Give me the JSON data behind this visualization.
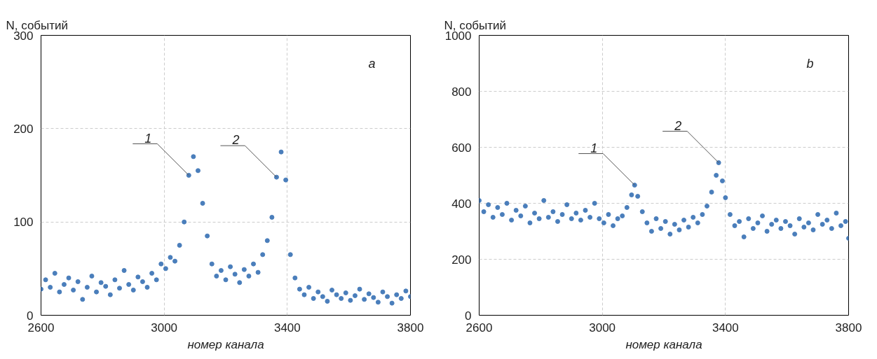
{
  "chart_data": [
    {
      "type": "scatter",
      "ylabel": "N, событий",
      "xlabel": "номер канала",
      "xlim": [
        2600,
        3800
      ],
      "ylim": [
        0,
        300
      ],
      "xticks": [
        2600,
        3000,
        3400,
        3800
      ],
      "yticks": [
        0,
        100,
        200,
        300
      ],
      "grid": true,
      "marker": "circle",
      "color": "#4a7ebb",
      "x": [
        2600,
        2615,
        2630,
        2645,
        2660,
        2675,
        2690,
        2705,
        2720,
        2735,
        2750,
        2765,
        2780,
        2795,
        2810,
        2825,
        2840,
        2855,
        2870,
        2885,
        2900,
        2915,
        2930,
        2945,
        2960,
        2975,
        2990,
        3005,
        3020,
        3035,
        3050,
        3065,
        3080,
        3095,
        3110,
        3125,
        3140,
        3155,
        3170,
        3185,
        3200,
        3215,
        3230,
        3245,
        3260,
        3275,
        3290,
        3305,
        3320,
        3335,
        3350,
        3365,
        3380,
        3395,
        3410,
        3425,
        3440,
        3455,
        3470,
        3485,
        3500,
        3515,
        3530,
        3545,
        3560,
        3575,
        3590,
        3605,
        3620,
        3635,
        3650,
        3665,
        3680,
        3695,
        3710,
        3725,
        3740,
        3755,
        3770,
        3785,
        3800
      ],
      "values": [
        28,
        38,
        30,
        45,
        25,
        33,
        40,
        27,
        36,
        17,
        30,
        42,
        25,
        35,
        31,
        22,
        38,
        29,
        48,
        33,
        27,
        41,
        36,
        30,
        45,
        38,
        55,
        50,
        62,
        58,
        75,
        100,
        150,
        170,
        155,
        120,
        85,
        55,
        42,
        48,
        38,
        52,
        44,
        35,
        49,
        42,
        55,
        46,
        65,
        80,
        105,
        148,
        175,
        145,
        65,
        40,
        28,
        22,
        30,
        18,
        25,
        20,
        15,
        27,
        22,
        18,
        24,
        16,
        21,
        28,
        17,
        23,
        19,
        14,
        25,
        20,
        13,
        22,
        18,
        26,
        20
      ],
      "annotations": [
        "a",
        {
          "text": "1",
          "x": 3080,
          "y": 150
        },
        {
          "text": "2",
          "x": 3365,
          "y": 148
        }
      ]
    },
    {
      "type": "scatter",
      "ylabel": "N, событий",
      "xlabel": "номер канала",
      "xlim": [
        2600,
        3800
      ],
      "ylim": [
        0,
        1000
      ],
      "xticks": [
        2600,
        3000,
        3400,
        3800
      ],
      "yticks": [
        0,
        200,
        400,
        600,
        800,
        1000
      ],
      "grid": true,
      "marker": "circle",
      "color": "#4a7ebb",
      "x": [
        2600,
        2615,
        2630,
        2645,
        2660,
        2675,
        2690,
        2705,
        2720,
        2735,
        2750,
        2765,
        2780,
        2795,
        2810,
        2825,
        2840,
        2855,
        2870,
        2885,
        2900,
        2915,
        2930,
        2945,
        2960,
        2975,
        2990,
        3005,
        3020,
        3035,
        3050,
        3065,
        3080,
        3095,
        3105,
        3115,
        3130,
        3145,
        3160,
        3175,
        3190,
        3205,
        3220,
        3235,
        3250,
        3265,
        3280,
        3295,
        3310,
        3325,
        3340,
        3355,
        3370,
        3378,
        3390,
        3400,
        3415,
        3430,
        3445,
        3460,
        3475,
        3490,
        3505,
        3520,
        3535,
        3550,
        3565,
        3580,
        3595,
        3610,
        3625,
        3640,
        3655,
        3670,
        3685,
        3700,
        3715,
        3730,
        3745,
        3760,
        3775,
        3790,
        3800
      ],
      "values": [
        410,
        370,
        395,
        350,
        385,
        360,
        400,
        340,
        375,
        355,
        390,
        330,
        365,
        345,
        410,
        350,
        370,
        335,
        360,
        395,
        345,
        365,
        340,
        375,
        350,
        400,
        345,
        330,
        360,
        320,
        345,
        355,
        385,
        430,
        465,
        425,
        370,
        330,
        300,
        345,
        310,
        335,
        290,
        325,
        305,
        340,
        315,
        350,
        330,
        360,
        390,
        440,
        500,
        545,
        480,
        420,
        360,
        320,
        335,
        280,
        345,
        310,
        330,
        355,
        300,
        325,
        340,
        310,
        335,
        320,
        290,
        345,
        315,
        330,
        305,
        360,
        325,
        340,
        310,
        365,
        320,
        335,
        275
      ],
      "annotations": [
        "b",
        {
          "text": "1",
          "x": 3105,
          "y": 465
        },
        {
          "text": "2",
          "x": 3378,
          "y": 545
        }
      ]
    }
  ]
}
